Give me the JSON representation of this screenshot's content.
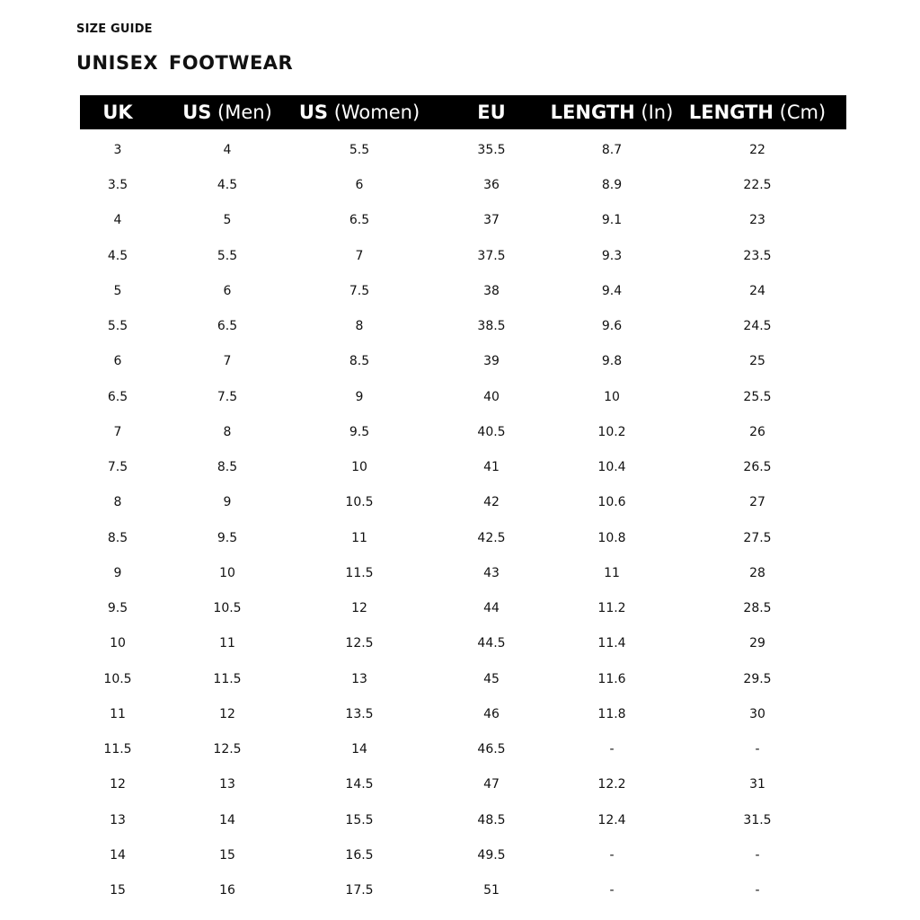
{
  "kicker": "SIZE GUIDE",
  "title": "UNISEX  FOOTWEAR",
  "columns": [
    {
      "bold": "UK",
      "normal": ""
    },
    {
      "bold": "US",
      "normal": " (Men)"
    },
    {
      "bold": "US",
      "normal": " (Women)"
    },
    {
      "bold": "EU",
      "normal": ""
    },
    {
      "bold": "LENGTH",
      "normal": " (In)"
    },
    {
      "bold": "LENGTH",
      "normal": " (Cm)"
    }
  ],
  "rows": [
    [
      "3",
      "4",
      "5.5",
      "35.5",
      "8.7",
      "22"
    ],
    [
      "3.5",
      "4.5",
      "6",
      "36",
      "8.9",
      "22.5"
    ],
    [
      "4",
      "5",
      "6.5",
      "37",
      "9.1",
      "23"
    ],
    [
      "4.5",
      "5.5",
      "7",
      "37.5",
      "9.3",
      "23.5"
    ],
    [
      "5",
      "6",
      "7.5",
      "38",
      "9.4",
      "24"
    ],
    [
      "5.5",
      "6.5",
      "8",
      "38.5",
      "9.6",
      "24.5"
    ],
    [
      "6",
      "7",
      "8.5",
      "39",
      "9.8",
      "25"
    ],
    [
      "6.5",
      "7.5",
      "9",
      "40",
      "10",
      "25.5"
    ],
    [
      "7",
      "8",
      "9.5",
      "40.5",
      "10.2",
      "26"
    ],
    [
      "7.5",
      "8.5",
      "10",
      "41",
      "10.4",
      "26.5"
    ],
    [
      "8",
      "9",
      "10.5",
      "42",
      "10.6",
      "27"
    ],
    [
      "8.5",
      "9.5",
      "11",
      "42.5",
      "10.8",
      "27.5"
    ],
    [
      "9",
      "10",
      "11.5",
      "43",
      "11",
      "28"
    ],
    [
      "9.5",
      "10.5",
      "12",
      "44",
      "11.2",
      "28.5"
    ],
    [
      "10",
      "11",
      "12.5",
      "44.5",
      "11.4",
      "29"
    ],
    [
      "10.5",
      "11.5",
      "13",
      "45",
      "11.6",
      "29.5"
    ],
    [
      "11",
      "12",
      "13.5",
      "46",
      "11.8",
      "30"
    ],
    [
      "11.5",
      "12.5",
      "14",
      "46.5",
      "-",
      "-"
    ],
    [
      "12",
      "13",
      "14.5",
      "47",
      "12.2",
      "31"
    ],
    [
      "13",
      "14",
      "15.5",
      "48.5",
      "12.4",
      "31.5"
    ],
    [
      "14",
      "15",
      "16.5",
      "49.5",
      "-",
      "-"
    ],
    [
      "15",
      "16",
      "17.5",
      "51",
      "-",
      "-"
    ]
  ]
}
